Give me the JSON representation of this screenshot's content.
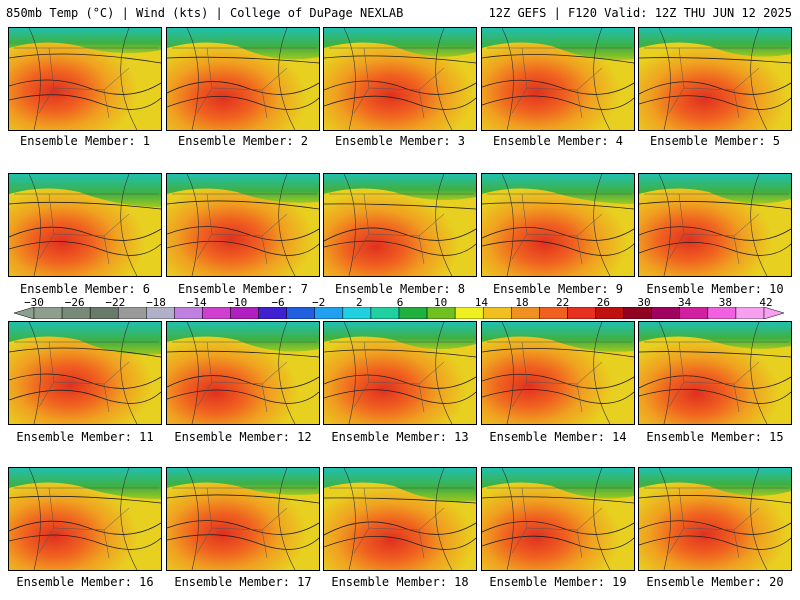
{
  "header": {
    "left": "850mb Temp (°C) | Wind (kts) | College of DuPage NEXLAB",
    "right": "12Z GEFS | F120 Valid: 12Z THU JUN 12 2025"
  },
  "members": [
    "Ensemble Member: 1",
    "Ensemble Member: 2",
    "Ensemble Member: 3",
    "Ensemble Member: 4",
    "Ensemble Member: 5",
    "Ensemble Member: 6",
    "Ensemble Member: 7",
    "Ensemble Member: 8",
    "Ensemble Member: 9",
    "Ensemble Member: 10",
    "Ensemble Member: 11",
    "Ensemble Member: 12",
    "Ensemble Member: 13",
    "Ensemble Member: 14",
    "Ensemble Member: 15",
    "Ensemble Member: 16",
    "Ensemble Member: 17",
    "Ensemble Member: 18",
    "Ensemble Member: 19",
    "Ensemble Member: 20"
  ],
  "colorbar": {
    "labels": [
      "−30",
      "−26",
      "−22",
      "−18",
      "−14",
      "−10",
      "−6",
      "−2",
      "2",
      "6",
      "10",
      "14",
      "18",
      "22",
      "26",
      "30",
      "34",
      "38",
      "42"
    ],
    "colors": [
      "#8f9f8f",
      "#7a8a7a",
      "#6a7a6a",
      "#9a9a9a",
      "#b0b0c8",
      "#c080e0",
      "#d040d0",
      "#b020c0",
      "#4020d0",
      "#2060e0",
      "#20a0f0",
      "#20d0e0",
      "#20d0a0",
      "#20b040",
      "#70c020",
      "#f0f020",
      "#f0c020",
      "#f09020",
      "#f06020",
      "#e83020",
      "#c01010",
      "#900020",
      "#a00060",
      "#d020a0",
      "#f060e0",
      "#f8a0f0"
    ]
  }
}
